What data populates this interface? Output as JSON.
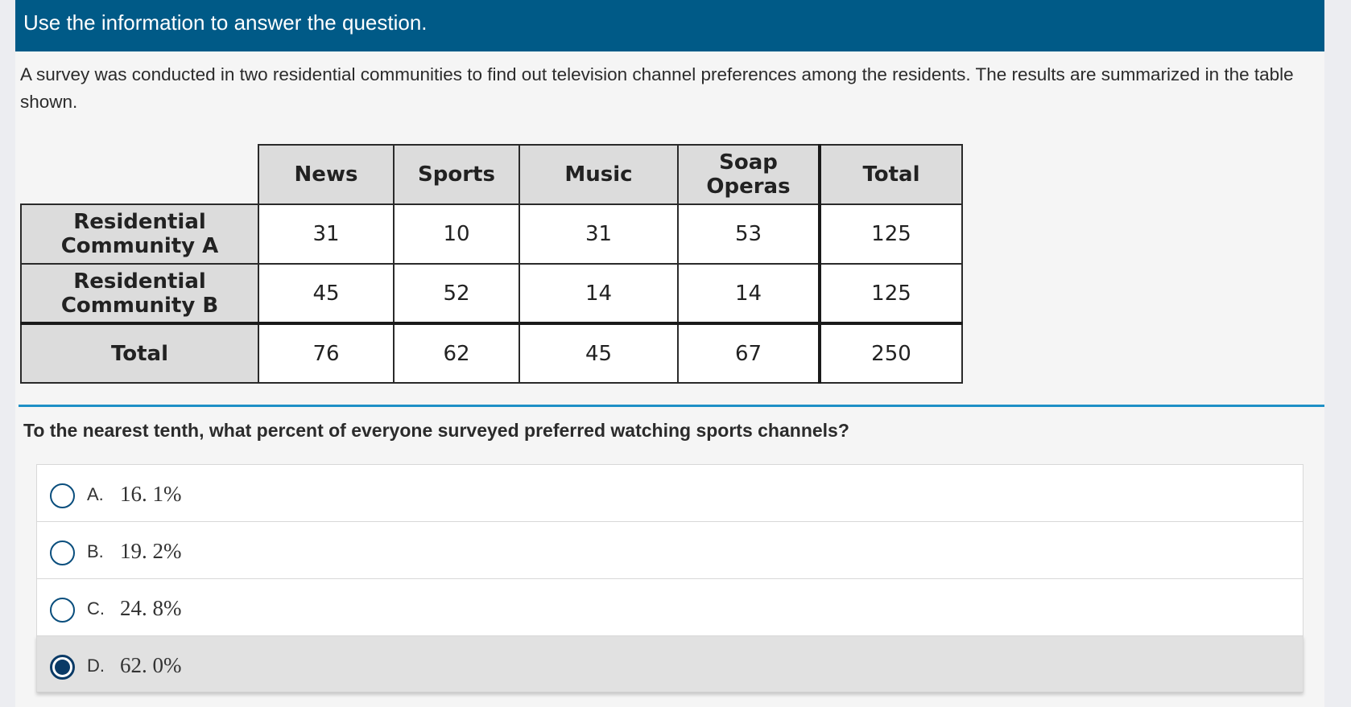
{
  "header": {
    "title": "Use the information to answer the question."
  },
  "passage": "A survey was conducted in two residential communities to find out television channel preferences among the residents. The results are summarized in the table shown.",
  "table": {
    "columns": [
      "News",
      "Sports",
      "Music",
      "Soap Operas",
      "Total"
    ],
    "rows": [
      {
        "label_line1": "Residential",
        "label_line2": "Community A",
        "values": [
          "31",
          "10",
          "31",
          "53",
          "125"
        ]
      },
      {
        "label_line1": "Residential",
        "label_line2": "Community B",
        "values": [
          "45",
          "52",
          "14",
          "14",
          "125"
        ]
      },
      {
        "label_line1": "Total",
        "label_line2": "",
        "values": [
          "76",
          "62",
          "45",
          "67",
          "250"
        ]
      }
    ]
  },
  "question": "To the nearest tenth, what percent of everyone surveyed preferred watching sports channels?",
  "choices": [
    {
      "letter": "A.",
      "value": "16. 1%",
      "selected": false
    },
    {
      "letter": "B.",
      "value": "19. 2%",
      "selected": false
    },
    {
      "letter": "C.",
      "value": "24. 8%",
      "selected": false
    },
    {
      "letter": "D.",
      "value": "62. 0%",
      "selected": true
    }
  ],
  "colors": {
    "header_bg": "#005a87",
    "divider": "#1e8fc6",
    "selected_radio": "#0a3a66"
  }
}
